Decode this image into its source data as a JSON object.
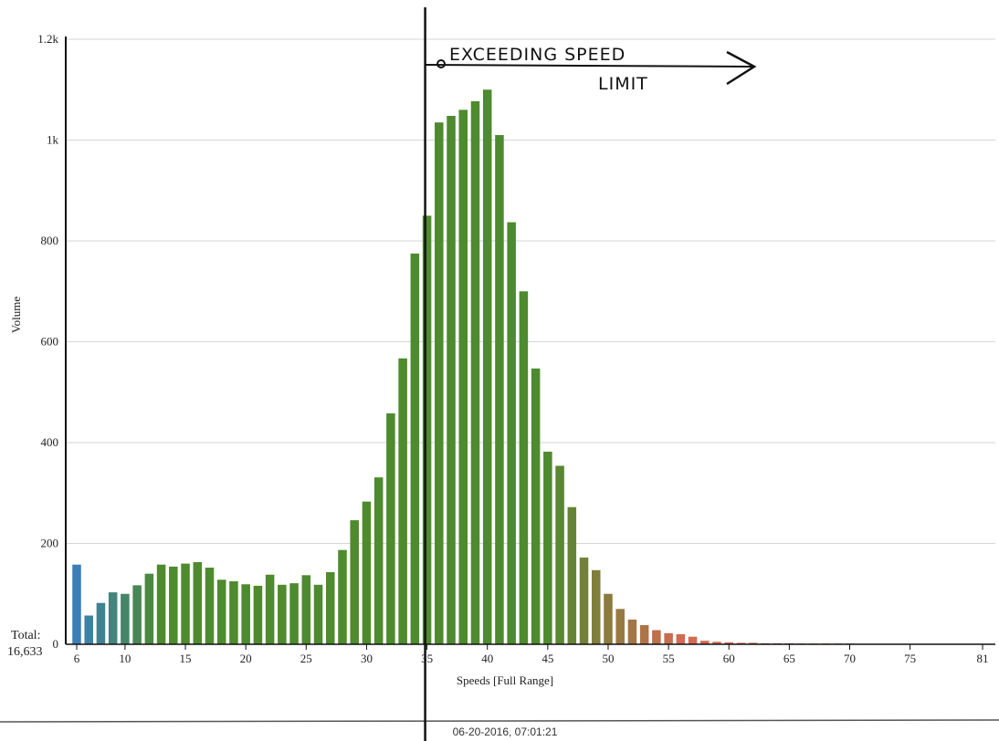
{
  "chart_data": {
    "type": "bar",
    "xlabel": "Speeds [Full Range]",
    "ylabel": "Volume",
    "ylim": [
      0,
      1200
    ],
    "y_ticks": [
      {
        "value": 0,
        "label": "0"
      },
      {
        "value": 200,
        "label": "200"
      },
      {
        "value": 400,
        "label": "400"
      },
      {
        "value": 600,
        "label": "600"
      },
      {
        "value": 800,
        "label": "800"
      },
      {
        "value": 1000,
        "label": "1k"
      },
      {
        "value": 1200,
        "label": "1.2k"
      }
    ],
    "x_ticks": [
      6,
      10,
      15,
      20,
      25,
      30,
      35,
      40,
      45,
      50,
      55,
      60,
      65,
      70,
      75,
      81
    ],
    "x_range": [
      6,
      81
    ],
    "grid": "horizontal",
    "categories": [
      6,
      7,
      8,
      9,
      10,
      11,
      12,
      13,
      14,
      15,
      16,
      17,
      18,
      19,
      20,
      21,
      22,
      23,
      24,
      25,
      26,
      27,
      28,
      29,
      30,
      31,
      32,
      33,
      34,
      35,
      36,
      37,
      38,
      39,
      40,
      41,
      42,
      43,
      44,
      45,
      46,
      47,
      48,
      49,
      50,
      51,
      52,
      53,
      54,
      55,
      56,
      57,
      58,
      59,
      60,
      61,
      62,
      63,
      64,
      65,
      66,
      67,
      68,
      69,
      70
    ],
    "values": [
      158,
      57,
      82,
      103,
      100,
      117,
      140,
      158,
      154,
      160,
      163,
      152,
      128,
      125,
      119,
      116,
      138,
      118,
      121,
      137,
      118,
      143,
      187,
      246,
      283,
      331,
      458,
      567,
      775,
      850,
      1035,
      1048,
      1060,
      1077,
      1100,
      1010,
      837,
      700,
      547,
      382,
      354,
      272,
      172,
      147,
      100,
      70,
      49,
      38,
      28,
      22,
      20,
      15,
      7,
      5,
      4,
      3,
      3,
      2,
      2,
      2,
      1,
      1,
      1,
      1,
      1
    ],
    "colors": {
      "low": "#3b7fb6",
      "mid": "#4e8a2e",
      "high": "#d46a52",
      "grid": "#d6d6d6",
      "axis": "#111111"
    },
    "annotation": {
      "line1": "EXCEEDING SPEED",
      "line2": "LIMIT",
      "at_speed": 35
    },
    "total_label": "Total:",
    "total_value": "16,633",
    "timestamp": "06-20-2016, 07:01:21"
  }
}
